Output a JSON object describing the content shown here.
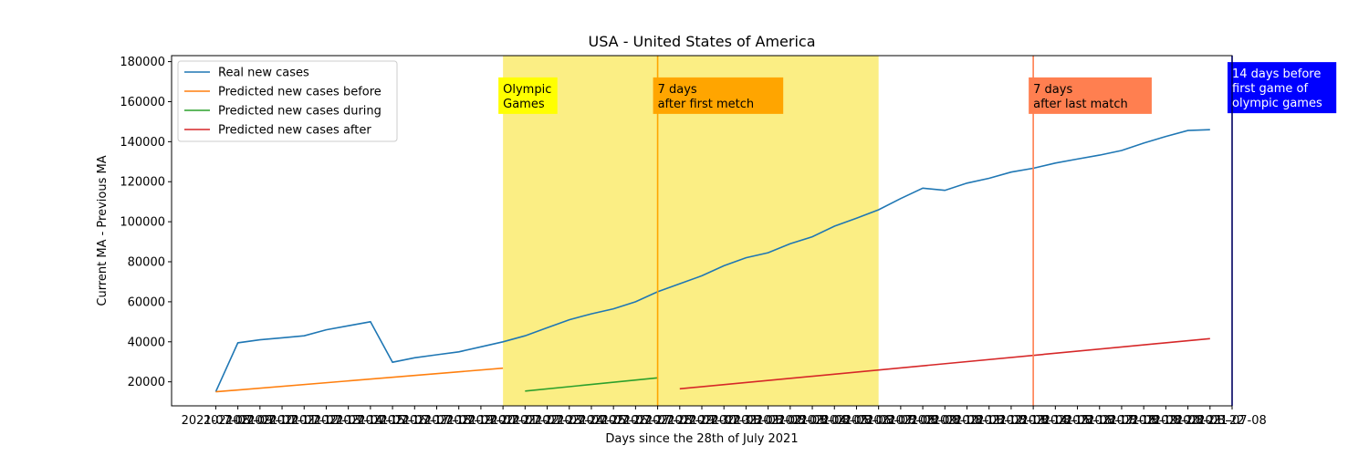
{
  "chart_data": {
    "type": "line",
    "title": "USA - United States of America",
    "xlabel": "Days since the 28th of July 2021",
    "ylabel": "Current MA - Previous MA",
    "xlim": [
      -2,
      46
    ],
    "ylim": [
      8000,
      183000
    ],
    "grid": false,
    "legend_position": "top-left",
    "x_tick_labels": [
      "2021-07-08",
      "2021-07-09",
      "2021-07-10",
      "2021-07-11",
      "2021-07-12",
      "2021-07-13",
      "2021-07-14",
      "2021-07-15",
      "2021-07-16",
      "2021-07-17",
      "2021-07-18",
      "2021-07-19",
      "2021-07-20",
      "2021-07-21",
      "2021-07-22",
      "2021-07-23",
      "2021-07-24",
      "2021-07-25",
      "2021-07-26",
      "2021-07-27",
      "2021-07-28",
      "2021-07-29",
      "2021-07-30",
      "2021-07-31",
      "2021-08-01",
      "2021-08-02",
      "2021-08-03",
      "2021-08-04",
      "2021-08-05",
      "2021-08-06",
      "2021-08-07",
      "2021-08-08",
      "2021-08-09",
      "2021-08-10",
      "2021-08-11",
      "2021-08-12",
      "2021-08-13",
      "2021-08-14",
      "2021-08-15",
      "2021-08-16",
      "2021-08-17",
      "2021-08-18",
      "2021-08-19",
      "2021-08-20",
      "2021-08-21",
      "2021-08-22",
      "2021-07-08"
    ],
    "y_ticks": [
      20000,
      40000,
      60000,
      80000,
      100000,
      120000,
      140000,
      160000,
      180000
    ],
    "series": [
      {
        "name": "Real new cases",
        "color": "#1f77b4",
        "x": [
          0,
          1,
          2,
          3,
          4,
          5,
          6,
          7,
          8,
          9,
          10,
          11,
          12,
          13,
          14,
          15,
          16,
          17,
          18,
          19,
          20,
          21,
          22,
          23,
          24,
          25,
          26,
          27,
          28,
          29,
          30,
          31,
          32,
          33,
          34,
          35,
          36,
          37,
          38,
          39,
          40,
          41,
          42,
          43,
          44,
          45
        ],
        "y": [
          15000,
          39500,
          41000,
          42000,
          43000,
          46000,
          48000,
          50000,
          29800,
          32000,
          33500,
          35000,
          37500,
          40000,
          43000,
          47000,
          51000,
          54000,
          56500,
          60000,
          65000,
          69000,
          73000,
          78000,
          82000,
          84500,
          89000,
          92500,
          97800,
          101800,
          106000,
          111600,
          116800,
          115700,
          119300,
          121700,
          124800,
          126700,
          129300,
          131300,
          133300,
          135600,
          139300,
          142600,
          145600,
          146000
        ]
      },
      {
        "name": "Predicted new cases before",
        "color": "#ff7f0e",
        "x": [
          0,
          13
        ],
        "y": [
          15000,
          26800
        ]
      },
      {
        "name": "Predicted new cases during",
        "color": "#2ca02c",
        "x": [
          14,
          20
        ],
        "y": [
          15400,
          22000
        ]
      },
      {
        "name": "Predicted new cases after",
        "color": "#d62728",
        "x": [
          21,
          45
        ],
        "y": [
          16500,
          41600
        ]
      }
    ],
    "shaded_region": {
      "x": [
        13,
        30
      ],
      "color": "#fbee84"
    },
    "vlines": [
      {
        "x": 20,
        "color": "#ffa500"
      },
      {
        "x": 37,
        "color": "#ff7f50"
      },
      {
        "x": 46,
        "color": "#0000ff"
      }
    ],
    "annotations": [
      {
        "text": [
          "Olympic",
          "Games"
        ],
        "x": 13,
        "y": 163000,
        "bg": "#ffff00",
        "fg": "#000000"
      },
      {
        "text": [
          "7 days",
          "after first metch"
        ],
        "x": 20,
        "y": 163000,
        "bg": "#ffa500",
        "fg": "#000000"
      },
      {
        "text": [
          "7 days",
          "after last match"
        ],
        "x": 37,
        "y": 163000,
        "bg": "#ff7f50",
        "fg": "#000000"
      },
      {
        "text": [
          "14 days before",
          "first game of",
          "olympic games"
        ],
        "x": 46,
        "y": 167000,
        "bg": "#0000ff",
        "fg": "#ffffff"
      }
    ]
  }
}
